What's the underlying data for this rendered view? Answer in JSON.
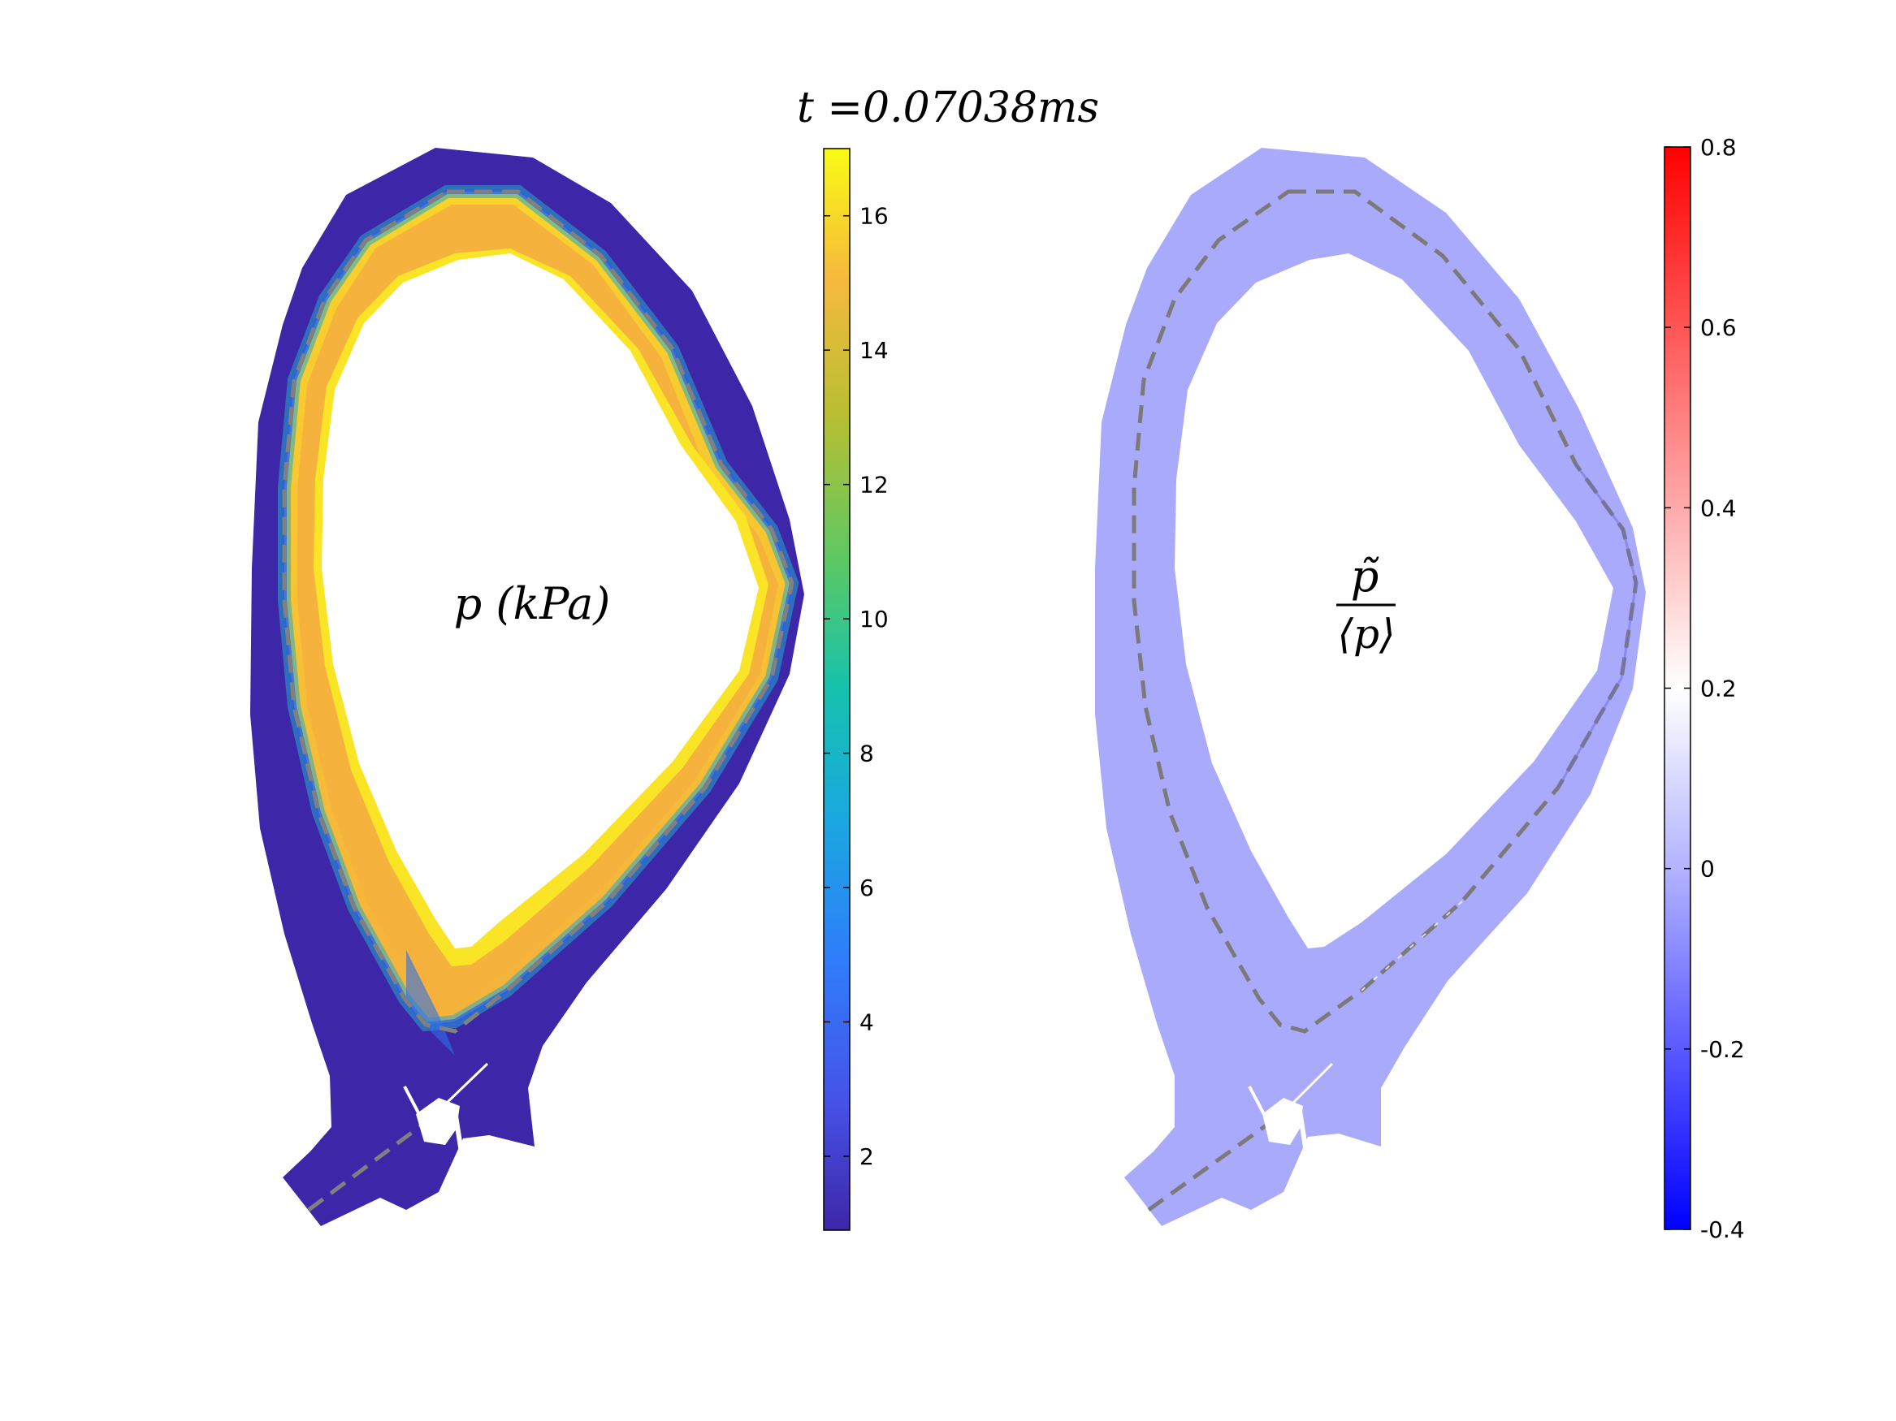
{
  "figure": {
    "title": "t =0.07038ms"
  },
  "chart_data": [
    {
      "type": "heatmap",
      "label": "p (kPa)",
      "colormap": "parula",
      "colorbar": {
        "range": [
          0.9,
          17.0
        ],
        "ticks": [
          2,
          4,
          6,
          8,
          10,
          12,
          14,
          16
        ],
        "colors": [
          "#3e26a8",
          "#4653e8",
          "#2f7dfb",
          "#1aa8e0",
          "#16c2ad",
          "#5cc863",
          "#b6bf33",
          "#f6b93d",
          "#f9fb15"
        ]
      },
      "field": {
        "outer_region_value": 1.0,
        "core_edge_value": 17.0,
        "core_bulk_value": 15.0
      }
    },
    {
      "type": "heatmap",
      "label_numerator": "p̃",
      "label_denominator": "⟨p⟩",
      "colormap": "blue-white-red",
      "colorbar": {
        "range": [
          -0.4,
          0.8
        ],
        "ticks": [
          -0.4,
          -0.2,
          0,
          0.2,
          0.4,
          0.6,
          0.8
        ],
        "colors": [
          "#0000ff",
          "#7d7dff",
          "#ffffff",
          "#ff7d7d",
          "#ff0000"
        ]
      },
      "field": {
        "background_value": 0.0
      }
    }
  ]
}
